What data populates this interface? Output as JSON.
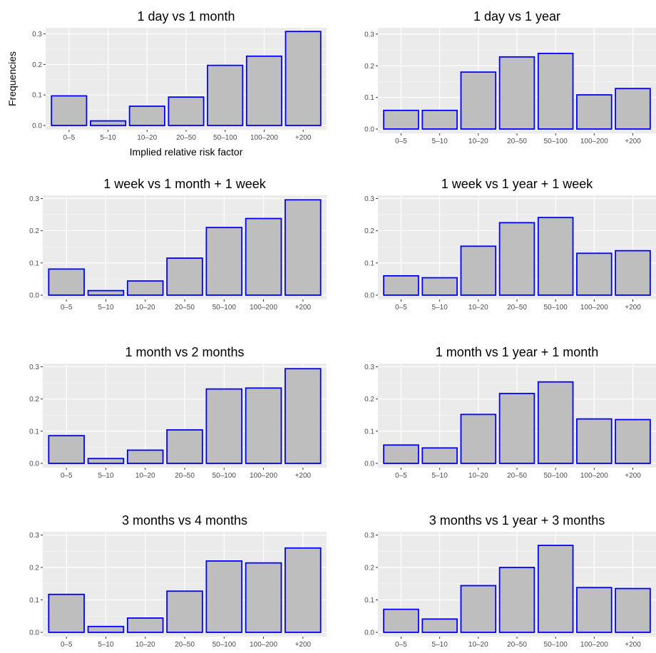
{
  "colors": {
    "panel_bg": "#ebebeb",
    "grid": "#ffffff",
    "bar_fill": "#bebebe",
    "bar_stroke": "#0000ff",
    "tick_text": "#4d4d4d"
  },
  "chart_data": [
    {
      "type": "bar",
      "title": "1 day vs 1 month",
      "xlabel": "Implied relative risk factor",
      "ylabel": "Frequencies",
      "categories": [
        "0–5",
        "5–10",
        "10–20",
        "20–50",
        "50–100",
        "100–200",
        "+200"
      ],
      "values": [
        0.097,
        0.015,
        0.063,
        0.093,
        0.197,
        0.227,
        0.308
      ],
      "ylim": [
        0,
        0.32
      ],
      "yticks": [
        "0.0",
        "0.1",
        "0.2",
        "0.3"
      ],
      "grid": true
    },
    {
      "type": "bar",
      "title": "1 day vs 1 year",
      "xlabel": "",
      "ylabel": "",
      "categories": [
        "0–5",
        "5–10",
        "10–20",
        "20–50",
        "50–100",
        "100–200",
        "+200"
      ],
      "values": [
        0.059,
        0.059,
        0.18,
        0.228,
        0.239,
        0.108,
        0.128
      ],
      "ylim": [
        0,
        0.32
      ],
      "yticks": [
        "0.0",
        "0.1",
        "0.2",
        "0.3"
      ],
      "grid": true
    },
    {
      "type": "bar",
      "title": "1 week vs 1 month + 1 week",
      "xlabel": "",
      "ylabel": "",
      "categories": [
        "0–5",
        "5–10",
        "10–20",
        "20–50",
        "50–100",
        "100–200",
        "+200"
      ],
      "values": [
        0.081,
        0.014,
        0.044,
        0.115,
        0.21,
        0.238,
        0.296
      ],
      "ylim": [
        0,
        0.31
      ],
      "yticks": [
        "0.0",
        "0.1",
        "0.2",
        "0.3"
      ],
      "grid": true
    },
    {
      "type": "bar",
      "title": "1 week vs 1 year + 1 week",
      "xlabel": "",
      "ylabel": "",
      "categories": [
        "0–5",
        "5–10",
        "10–20",
        "20–50",
        "50–100",
        "100–200",
        "+200"
      ],
      "values": [
        0.06,
        0.054,
        0.152,
        0.225,
        0.241,
        0.13,
        0.138
      ],
      "ylim": [
        0,
        0.31
      ],
      "yticks": [
        "0.0",
        "0.1",
        "0.2",
        "0.3"
      ],
      "grid": true
    },
    {
      "type": "bar",
      "title": "1 month vs 2 months",
      "xlabel": "",
      "ylabel": "",
      "categories": [
        "0–5",
        "5–10",
        "10–20",
        "20–50",
        "50–100",
        "100–200",
        "+200"
      ],
      "values": [
        0.086,
        0.015,
        0.041,
        0.104,
        0.231,
        0.234,
        0.294
      ],
      "ylim": [
        0,
        0.31
      ],
      "yticks": [
        "0.0",
        "0.1",
        "0.2",
        "0.3"
      ],
      "grid": true
    },
    {
      "type": "bar",
      "title": "1 month vs 1 year + 1 month",
      "xlabel": "",
      "ylabel": "",
      "categories": [
        "0–5",
        "5–10",
        "10–20",
        "20–50",
        "50–100",
        "100–200",
        "+200"
      ],
      "values": [
        0.057,
        0.048,
        0.152,
        0.217,
        0.253,
        0.138,
        0.136
      ],
      "ylim": [
        0,
        0.31
      ],
      "yticks": [
        "0.0",
        "0.1",
        "0.2",
        "0.3"
      ],
      "grid": true
    },
    {
      "type": "bar",
      "title": "3 months vs 4 months",
      "xlabel": "",
      "ylabel": "",
      "categories": [
        "0–5",
        "5–10",
        "10–20",
        "20–50",
        "50–100",
        "100–200",
        "+200"
      ],
      "values": [
        0.117,
        0.018,
        0.044,
        0.127,
        0.22,
        0.214,
        0.26
      ],
      "ylim": [
        0,
        0.31
      ],
      "yticks": [
        "0.0",
        "0.1",
        "0.2",
        "0.3"
      ],
      "grid": true
    },
    {
      "type": "bar",
      "title": "3 months vs 1 year + 3 months",
      "xlabel": "",
      "ylabel": "",
      "categories": [
        "0–5",
        "5–10",
        "10–20",
        "20–50",
        "50–100",
        "100–200",
        "+200"
      ],
      "values": [
        0.071,
        0.041,
        0.144,
        0.2,
        0.268,
        0.138,
        0.135
      ],
      "ylim": [
        0,
        0.31
      ],
      "yticks": [
        "0.0",
        "0.1",
        "0.2",
        "0.3"
      ],
      "grid": true
    }
  ]
}
